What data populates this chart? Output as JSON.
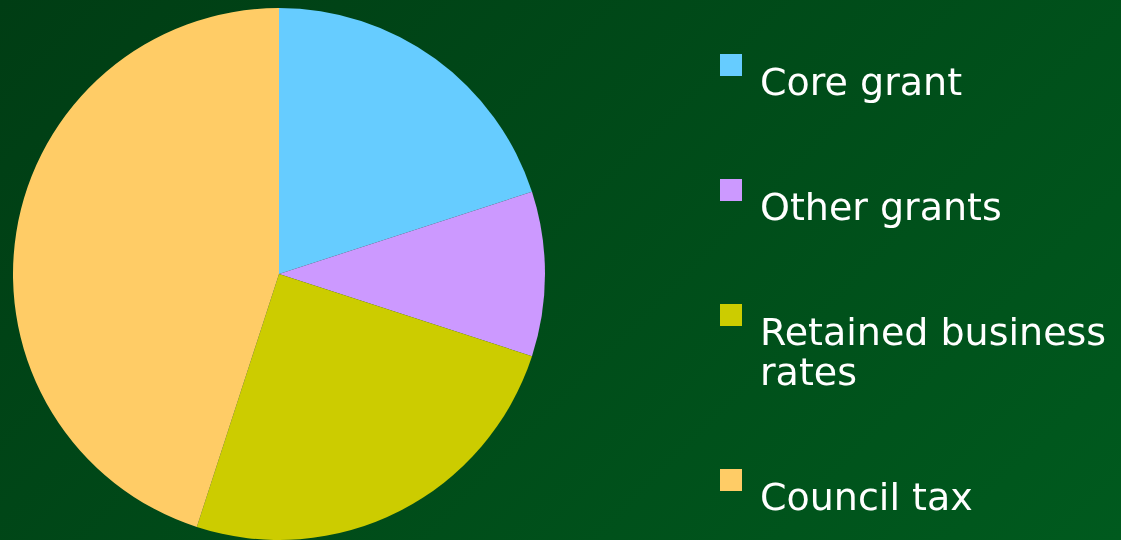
{
  "chart_data": {
    "type": "pie",
    "categories": [
      "Core grant",
      "Other grants",
      "Retained business rates",
      "Council tax"
    ],
    "values": [
      20,
      10,
      25,
      45
    ],
    "colors": [
      "#66ccff",
      "#cc99ff",
      "#cccc00",
      "#ffcc66"
    ],
    "legend": "right"
  }
}
